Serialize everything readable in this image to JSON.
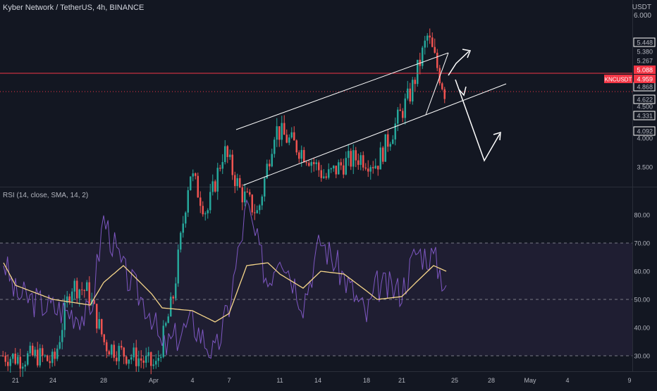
{
  "header": {
    "symbol_title": "Kyber Network / TetherUS, 4h, BINANCE",
    "rsi_title": "RSI (14, close, SMA, 14, 2)"
  },
  "price_scale": {
    "unit": "USDT",
    "top_value": "6.000",
    "axis_labels": [
      "5.448",
      "5.380",
      "5.267",
      "4.868",
      "4.622",
      "4.500",
      "4.331",
      "4.092",
      "4.000",
      "3.500"
    ],
    "boxed_labels": [
      "5.448",
      "4.868",
      "4.622",
      "4.331",
      "4.092"
    ],
    "current_price": "5.088",
    "current_price_secondary": "4.959",
    "ticker_tag": "KNCUSDT"
  },
  "rsi_scale": {
    "labels": [
      "80.00",
      "70.00",
      "60.00",
      "50.00",
      "40.00",
      "30.00"
    ]
  },
  "time_axis": {
    "labels": [
      "21",
      "24",
      "28",
      "Apr",
      "4",
      "7",
      "11",
      "14",
      "18",
      "21",
      "25",
      "28",
      "May",
      "4",
      "9"
    ]
  },
  "colors": {
    "background": "#131722",
    "up_candle": "#26a69a",
    "down_candle": "#ef5350",
    "resistance_line": "#f23645",
    "rsi_line": "#7e57c2",
    "rsi_ma": "#f6d68a",
    "rsi_band_fill": "#2a2540",
    "drawing": "#ffffff",
    "text": "#b2b5be"
  },
  "chart_data": [
    {
      "type": "candlestick",
      "title": "Kyber Network / TetherUS, 4h, BINANCE",
      "x_unit": "date (4h bars)",
      "ylim": [
        3.0,
        6.2
      ],
      "y_unit": "USDT",
      "resistance_level": 5.088,
      "support_level": 4.959,
      "ohlc_points": [
        {
          "date": "Mar 19",
          "close": 3.1
        },
        {
          "date": "Mar 21",
          "close": 3.08
        },
        {
          "date": "Mar 24",
          "close": 3.1
        },
        {
          "date": "Mar 27",
          "close": 3.05
        },
        {
          "date": "Mar 28",
          "close": 3.6
        },
        {
          "date": "Mar 30",
          "close": 3.55
        },
        {
          "date": "Apr 1",
          "close": 3.18
        },
        {
          "date": "Apr 2",
          "close": 3.12
        },
        {
          "date": "Apr 4",
          "close": 3.08
        },
        {
          "date": "Apr 6",
          "close": 3.02
        },
        {
          "date": "Apr 8",
          "close": 3.5
        },
        {
          "date": "Apr 9",
          "close": 4.4
        },
        {
          "date": "Apr 10",
          "close": 4.1
        },
        {
          "date": "Apr 11",
          "close": 4.55
        },
        {
          "date": "Apr 12",
          "close": 4.25
        },
        {
          "date": "Apr 13",
          "close": 4.1
        },
        {
          "date": "Apr 14",
          "close": 4.7
        },
        {
          "date": "Apr 15",
          "close": 4.6
        },
        {
          "date": "Apr 16",
          "close": 4.5
        },
        {
          "date": "Apr 17",
          "close": 4.35
        },
        {
          "date": "Apr 18",
          "close": 4.45
        },
        {
          "date": "Apr 19",
          "close": 4.5
        },
        {
          "date": "Apr 20",
          "close": 4.45
        },
        {
          "date": "Apr 21",
          "close": 4.7
        },
        {
          "date": "Apr 22",
          "close": 4.95
        },
        {
          "date": "Apr 23",
          "close": 5.35
        },
        {
          "date": "Apr 24",
          "close": 4.96
        }
      ],
      "annotations": [
        "ascending channel",
        "projected move up",
        "projected move down then up"
      ]
    },
    {
      "type": "line",
      "title": "RSI (14, close, SMA, 14, 2)",
      "ylim": [
        28,
        86
      ],
      "bands": [
        30,
        70
      ],
      "midline": 50,
      "series": [
        {
          "key": "rsi",
          "values": [
            {
              "date": "Mar 19",
              "y": 64
            },
            {
              "date": "Mar 21",
              "y": 52
            },
            {
              "date": "Mar 24",
              "y": 47
            },
            {
              "date": "Mar 27",
              "y": 44
            },
            {
              "date": "Mar 28",
              "y": 79
            },
            {
              "date": "Mar 30",
              "y": 60
            },
            {
              "date": "Apr 1",
              "y": 45
            },
            {
              "date": "Apr 2",
              "y": 32
            },
            {
              "date": "Apr 4",
              "y": 42
            },
            {
              "date": "Apr 6",
              "y": 30
            },
            {
              "date": "Apr 7",
              "y": 48
            },
            {
              "date": "Apr 8",
              "y": 83
            },
            {
              "date": "Apr 10",
              "y": 56
            },
            {
              "date": "Apr 11",
              "y": 68
            },
            {
              "date": "Apr 13",
              "y": 49
            },
            {
              "date": "Apr 14",
              "y": 71
            },
            {
              "date": "Apr 16",
              "y": 58
            },
            {
              "date": "Apr 18",
              "y": 44
            },
            {
              "date": "Apr 19",
              "y": 55
            },
            {
              "date": "Apr 21",
              "y": 53
            },
            {
              "date": "Apr 22",
              "y": 67
            },
            {
              "date": "Apr 23",
              "y": 65
            },
            {
              "date": "Apr 24",
              "y": 55
            }
          ]
        },
        {
          "key": "rsi_sma",
          "values": [
            {
              "date": "Mar 19",
              "y": 63
            },
            {
              "date": "Mar 21",
              "y": 55
            },
            {
              "date": "Mar 24",
              "y": 50
            },
            {
              "date": "Mar 27",
              "y": 48
            },
            {
              "date": "Mar 28",
              "y": 56
            },
            {
              "date": "Mar 30",
              "y": 62
            },
            {
              "date": "Apr 1",
              "y": 52
            },
            {
              "date": "Apr 2",
              "y": 47
            },
            {
              "date": "Apr 4",
              "y": 46
            },
            {
              "date": "Apr 6",
              "y": 42
            },
            {
              "date": "Apr 7",
              "y": 45
            },
            {
              "date": "Apr 8",
              "y": 62
            },
            {
              "date": "Apr 10",
              "y": 63
            },
            {
              "date": "Apr 11",
              "y": 59
            },
            {
              "date": "Apr 13",
              "y": 54
            },
            {
              "date": "Apr 14",
              "y": 60
            },
            {
              "date": "Apr 16",
              "y": 59
            },
            {
              "date": "Apr 18",
              "y": 53
            },
            {
              "date": "Apr 19",
              "y": 50
            },
            {
              "date": "Apr 21",
              "y": 51
            },
            {
              "date": "Apr 22",
              "y": 56
            },
            {
              "date": "Apr 23",
              "y": 62
            },
            {
              "date": "Apr 24",
              "y": 60
            }
          ]
        }
      ]
    }
  ]
}
